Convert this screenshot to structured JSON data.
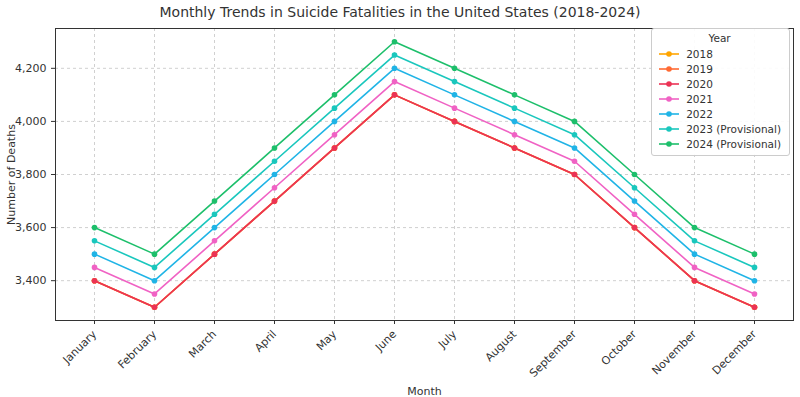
{
  "chart_data": {
    "type": "line",
    "title": "Monthly Trends in Suicide Fatalities in the United States (2018-2024)",
    "x_label": "Month",
    "y_label": "Number of Deaths",
    "legend_title": "Year",
    "categories": [
      "January",
      "February",
      "March",
      "April",
      "May",
      "June",
      "July",
      "August",
      "September",
      "October",
      "November",
      "December"
    ],
    "series": [
      {
        "name": "2018",
        "color": "#ffa500",
        "values": [
          3400,
          3300,
          3500,
          3700,
          3900,
          4100,
          4000,
          3900,
          3800,
          3600,
          3400,
          3300
        ]
      },
      {
        "name": "2019",
        "color": "#ff6a33",
        "values": [
          3400,
          3300,
          3500,
          3700,
          3900,
          4100,
          4000,
          3900,
          3800,
          3600,
          3400,
          3300
        ]
      },
      {
        "name": "2020",
        "color": "#eb3355",
        "values": [
          3400,
          3300,
          3500,
          3700,
          3900,
          4100,
          4000,
          3900,
          3800,
          3600,
          3400,
          3300
        ]
      },
      {
        "name": "2021",
        "color": "#f062c4",
        "values": [
          3450,
          3350,
          3550,
          3750,
          3950,
          4150,
          4050,
          3950,
          3850,
          3650,
          3450,
          3350
        ]
      },
      {
        "name": "2022",
        "color": "#20b4e6",
        "values": [
          3500,
          3400,
          3600,
          3800,
          4000,
          4200,
          4100,
          4000,
          3900,
          3700,
          3500,
          3400
        ]
      },
      {
        "name": "2023 (Provisional)",
        "color": "#1ac7bd",
        "values": [
          3550,
          3450,
          3650,
          3850,
          4050,
          4250,
          4150,
          4050,
          3950,
          3750,
          3550,
          3450
        ]
      },
      {
        "name": "2024 (Provisional)",
        "color": "#1dbf6b",
        "values": [
          3600,
          3500,
          3700,
          3900,
          4100,
          4300,
          4200,
          4100,
          4000,
          3800,
          3600,
          3500
        ]
      }
    ],
    "ylim": [
      3250,
      4350
    ],
    "yticks": [
      3400,
      3600,
      3800,
      4000,
      4200
    ],
    "grid": true,
    "legend": "upper right",
    "marker": "circle"
  }
}
